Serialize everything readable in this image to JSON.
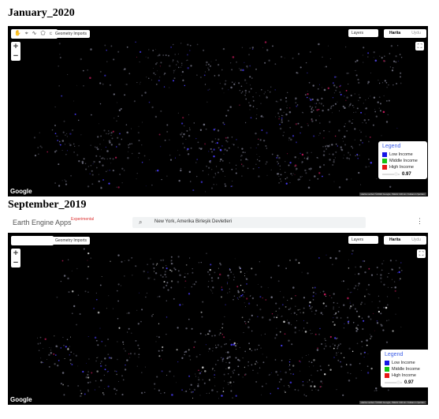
{
  "headings": {
    "first": "January_2020",
    "second": "September_2019"
  },
  "app_header": {
    "title": "Earth Engine Apps",
    "badge": "Experimental",
    "search_value": "New York, Amerika Birleşik Devletleri",
    "search_icon": "search-icon",
    "menu_icon": "more-vert-icon"
  },
  "map_controls": {
    "toolbar_icons": [
      "hand-icon",
      "point-icon",
      "line-icon",
      "polygon-icon",
      "rectangle-icon"
    ],
    "geometry_imports": "Geometry Imports",
    "zoom_in": "+",
    "zoom_out": "−",
    "layers": "Layers",
    "map_type_map": "Harita",
    "map_type_satellite": "Uydu",
    "fullscreen_icon": "fullscreen-icon",
    "google_logo": "Google",
    "attribution": "Harita verileri ©2020 Google, INEGI   100 km   Kullanım Şartları"
  },
  "legend": {
    "title": "Legend",
    "items": [
      {
        "label": "Low Income",
        "color": "#1515e6"
      },
      {
        "label": "Middle Income",
        "color": "#15c215"
      },
      {
        "label": "High Income",
        "color": "#e61515"
      }
    ],
    "opacity_value": "0.97"
  }
}
